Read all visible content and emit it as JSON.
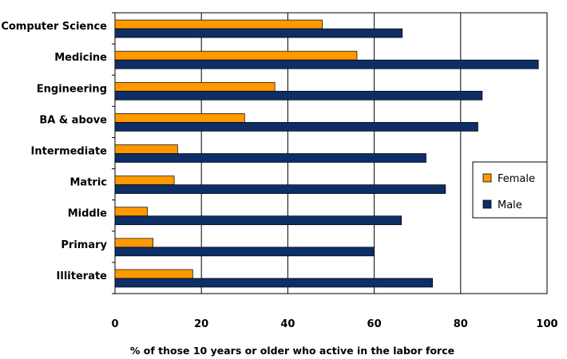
{
  "chart_data": {
    "type": "bar",
    "orientation": "horizontal",
    "categories": [
      "Computer Science",
      "Medicine",
      "Engineering",
      "BA & above",
      "Intermediate",
      "Matric",
      "Middle",
      "Primary",
      "Illiterate"
    ],
    "series": [
      {
        "name": "Female",
        "color": "#ff9900",
        "values": [
          48,
          56,
          37,
          30,
          14.5,
          13.7,
          7.5,
          8.8,
          18
        ]
      },
      {
        "name": "Male",
        "color": "#0d2e66",
        "values": [
          66.5,
          98,
          85,
          84,
          72,
          76.5,
          66.3,
          60,
          73.5
        ]
      }
    ],
    "xlabel": "% of those 10 years or older who active in the labor force",
    "xlim": [
      0,
      100
    ],
    "xticks": [
      0,
      20,
      40,
      60,
      80,
      100
    ],
    "grid": "vertical",
    "legend": {
      "position": "right",
      "entries": [
        "Female",
        "Male"
      ]
    }
  }
}
